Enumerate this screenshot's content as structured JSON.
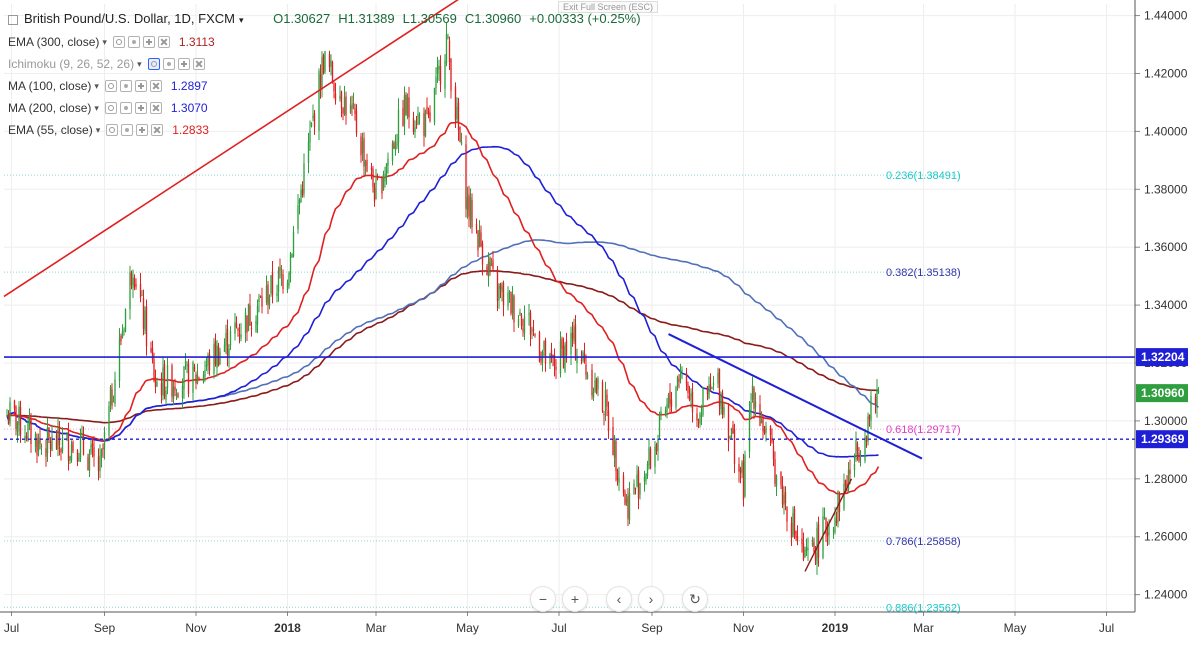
{
  "header": {
    "symbol": "British Pound/U.S. Dollar, 1D, FXCM",
    "open": "O1.30627",
    "high": "H1.31389",
    "low": "L1.30569",
    "close": "C1.30960",
    "change": "+0.00333 (+0.25%)",
    "exit_full_screen": "Exit Full Screen (ESC)"
  },
  "indicators": [
    {
      "label": "EMA (300, close)",
      "value": "1.3113",
      "color": "#b22222"
    },
    {
      "label": "Ichimoku (9, 26, 52, 26)",
      "value": "",
      "color": "#2962ff"
    },
    {
      "label": "MA (100, close)",
      "value": "1.2897",
      "color": "#1f1fd6"
    },
    {
      "label": "MA (200, close)",
      "value": "1.3070",
      "color": "#1f1fd6"
    },
    {
      "label": "EMA (55, close)",
      "value": "1.2833",
      "color": "#e02020"
    }
  ],
  "colors": {
    "up": "#2e9e3e",
    "down": "#e02020",
    "ema300": "#8b1a1a",
    "ma200": "#5070b8",
    "ma100": "#1f1fd6",
    "ema55": "#e02020",
    "resistance": "#1f1fd6",
    "fib": "#7fdcdc"
  },
  "chart_data": {
    "type": "candlestick",
    "ylim": [
      1.234,
      1.444
    ],
    "y_ticks": [
      "1.44000",
      "1.42000",
      "1.40000",
      "1.38000",
      "1.36000",
      "1.34000",
      "1.32000",
      "1.30000",
      "1.28000",
      "1.26000",
      "1.24000"
    ],
    "x_ticks": [
      "Jul",
      "Sep",
      "Nov",
      "2018",
      "Mar",
      "May",
      "Jul",
      "Sep",
      "Nov",
      "2019",
      "Mar",
      "May",
      "Jul"
    ],
    "close_series": [
      {
        "date": "2017-07",
        "value": 1.302
      },
      {
        "date": "2017-07-20",
        "value": 1.292
      },
      {
        "date": "2017-08-15",
        "value": 1.292
      },
      {
        "date": "2017-08-29",
        "value": 1.283
      },
      {
        "date": "2017-09-20",
        "value": 1.355
      },
      {
        "date": "2017-10-05",
        "value": 1.313
      },
      {
        "date": "2017-11-01",
        "value": 1.315
      },
      {
        "date": "2017-12-01",
        "value": 1.333
      },
      {
        "date": "2018-01-01",
        "value": 1.352
      },
      {
        "date": "2018-01-25",
        "value": 1.425
      },
      {
        "date": "2018-02-15",
        "value": 1.403
      },
      {
        "date": "2018-03-01",
        "value": 1.378
      },
      {
        "date": "2018-03-20",
        "value": 1.408
      },
      {
        "date": "2018-04-05",
        "value": 1.402
      },
      {
        "date": "2018-04-17",
        "value": 1.432
      },
      {
        "date": "2018-05-01",
        "value": 1.375
      },
      {
        "date": "2018-05-20",
        "value": 1.345
      },
      {
        "date": "2018-06-10",
        "value": 1.335
      },
      {
        "date": "2018-06-25",
        "value": 1.318
      },
      {
        "date": "2018-07-10",
        "value": 1.328
      },
      {
        "date": "2018-08-01",
        "value": 1.305
      },
      {
        "date": "2018-08-15",
        "value": 1.271
      },
      {
        "date": "2018-09-01",
        "value": 1.288
      },
      {
        "date": "2018-09-20",
        "value": 1.318
      },
      {
        "date": "2018-10-01",
        "value": 1.303
      },
      {
        "date": "2018-10-15",
        "value": 1.313
      },
      {
        "date": "2018-11-01",
        "value": 1.278
      },
      {
        "date": "2018-11-07",
        "value": 1.312
      },
      {
        "date": "2018-11-25",
        "value": 1.278
      },
      {
        "date": "2018-12-12",
        "value": 1.251
      },
      {
        "date": "2019-01-01",
        "value": 1.268
      },
      {
        "date": "2019-01-10",
        "value": 1.281
      },
      {
        "date": "2019-01-20",
        "value": 1.296
      },
      {
        "date": "2019-01-30",
        "value": 1.3096
      }
    ],
    "fibonacci": [
      {
        "ratio": "0.236",
        "label": "0.236(1.38491)",
        "price": 1.38491
      },
      {
        "ratio": "0.382",
        "label": "0.382(1.35138)",
        "price": 1.35138
      },
      {
        "ratio": "0.618",
        "label": "0.618(1.29717)",
        "price": 1.29717
      },
      {
        "ratio": "0.786",
        "label": "0.786(1.25858)",
        "price": 1.25858
      },
      {
        "ratio": "0.886",
        "label": "0.886(1.23562)",
        "price": 1.23562
      }
    ],
    "horizontal_levels": [
      {
        "label": "1.32204",
        "price": 1.32204,
        "style": "solid"
      },
      {
        "label": "1.29369",
        "price": 1.29369,
        "style": "dashed"
      }
    ],
    "last_price_label": "1.30960",
    "grid": true
  },
  "navigation": {
    "zoom_out": "−",
    "zoom_in": "+",
    "scroll_left": "‹",
    "scroll_right": "›",
    "reset": "↻"
  }
}
